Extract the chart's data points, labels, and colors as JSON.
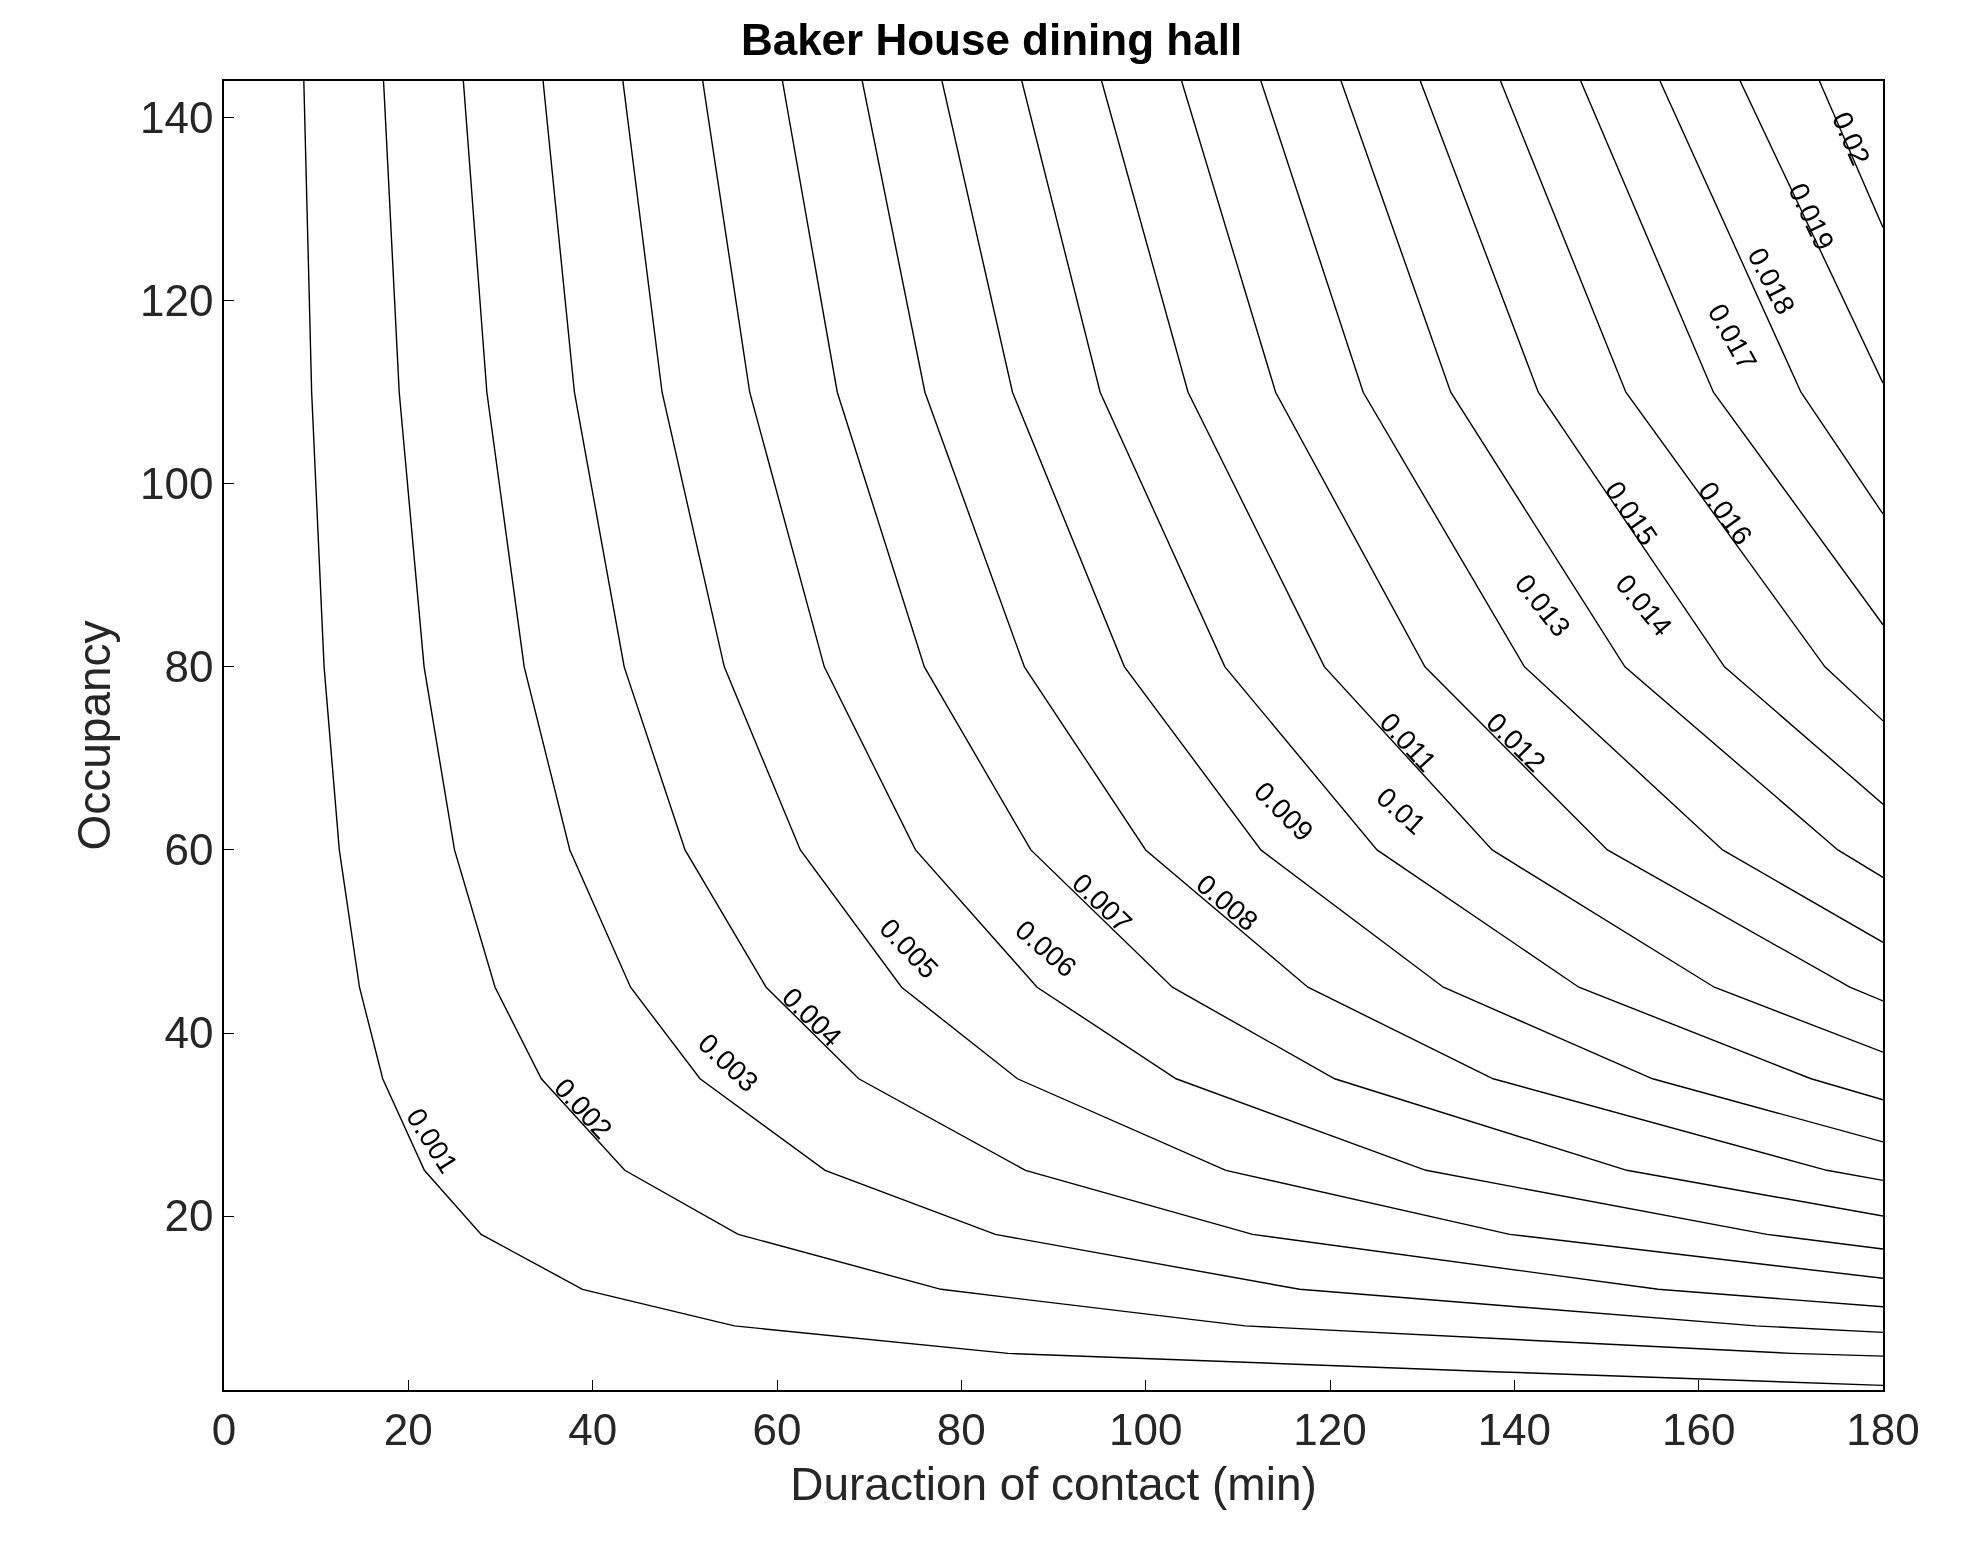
{
  "chart_data": {
    "type": "line",
    "title": "Baker House dining hall",
    "xlabel": "Duraction of contact (min)",
    "ylabel": "Occupancy",
    "series": [
      {
        "name": "0.001",
        "color": "#000000",
        "x": [
          8.66,
          9.51,
          10.86,
          12.51,
          14.7,
          17.22,
          21.74,
          27.9,
          38.89,
          55.38,
          85.07,
          137.8,
          180
        ],
        "values": [
          144,
          110,
          80,
          60,
          45,
          35,
          25,
          18,
          12,
          8,
          5,
          3,
          1.5
        ]
      },
      {
        "name": "0.002",
        "color": "#000000",
        "x": [
          17.31,
          19.01,
          21.71,
          25.01,
          29.41,
          34.43,
          43.48,
          55.79,
          77.79,
          110.8,
          170.1,
          180
        ],
        "values": [
          144,
          110,
          80,
          60,
          45,
          35,
          25,
          18,
          12,
          8,
          5,
          4.7
        ]
      },
      {
        "name": "0.003",
        "color": "#000000",
        "x": [
          25.97,
          28.52,
          32.57,
          37.52,
          44.11,
          51.65,
          65.22,
          83.69,
          116.7,
          166.2,
          180
        ],
        "values": [
          144,
          110,
          80,
          60,
          45,
          35,
          25,
          18,
          12,
          8,
          7.3
        ]
      },
      {
        "name": "0.004",
        "color": "#000000",
        "x": [
          34.62,
          38.02,
          43.42,
          50.02,
          58.82,
          68.87,
          86.96,
          111.6,
          155.6,
          180
        ],
        "values": [
          144,
          110,
          80,
          60,
          45,
          35,
          25,
          18,
          12,
          10.1
        ]
      },
      {
        "name": "0.005",
        "color": "#000000",
        "x": [
          43.28,
          47.53,
          54.28,
          62.53,
          73.52,
          86.09,
          108.7,
          139.5,
          180
        ],
        "values": [
          144,
          110,
          80,
          60,
          45,
          35,
          25,
          18,
          13.2
        ]
      },
      {
        "name": "0.006",
        "color": "#000000",
        "x": [
          51.94,
          57.04,
          65.13,
          75.03,
          88.22,
          103.3,
          130.4,
          167.4,
          180
        ],
        "values": [
          144,
          110,
          80,
          60,
          45,
          35,
          25,
          18,
          16.4
        ]
      },
      {
        "name": "0.007",
        "color": "#000000",
        "x": [
          60.59,
          66.54,
          75.99,
          87.54,
          102.9,
          120.5,
          152.2,
          180
        ],
        "values": [
          144,
          110,
          80,
          60,
          45,
          35,
          25,
          20
        ]
      },
      {
        "name": "0.008",
        "color": "#000000",
        "x": [
          69.25,
          76.05,
          86.84,
          100.0,
          117.6,
          137.7,
          173.9,
          180
        ],
        "values": [
          144,
          110,
          80,
          60,
          45,
          35,
          25,
          23.9
        ]
      },
      {
        "name": "0.009",
        "color": "#000000",
        "x": [
          77.9,
          85.55,
          97.7,
          112.5,
          132.3,
          155.0,
          180
        ],
        "values": [
          144,
          110,
          80,
          60,
          45,
          35,
          28.1
        ]
      },
      {
        "name": "0.01",
        "color": "#000000",
        "x": [
          86.56,
          95.06,
          108.6,
          125.1,
          147.0,
          172.2,
          180
        ],
        "values": [
          144,
          110,
          80,
          60,
          45,
          35,
          32.7
        ]
      },
      {
        "name": "0.011",
        "color": "#000000",
        "x": [
          95.22,
          104.6,
          119.4,
          137.6,
          161.7,
          180
        ],
        "values": [
          144,
          110,
          80,
          60,
          45,
          37.9
        ]
      },
      {
        "name": "0.012",
        "color": "#000000",
        "x": [
          103.9,
          114.1,
          130.3,
          150.1,
          176.4,
          180
        ],
        "values": [
          144,
          110,
          80,
          60,
          45,
          43.5
        ]
      },
      {
        "name": "0.013",
        "color": "#000000",
        "x": [
          112.5,
          123.6,
          141.1,
          162.6,
          180
        ],
        "values": [
          144,
          110,
          80,
          60,
          49.9
        ]
      },
      {
        "name": "0.014",
        "color": "#000000",
        "x": [
          121.2,
          133.1,
          152.0,
          175.1,
          180
        ],
        "values": [
          144,
          110,
          80,
          60,
          57
        ]
      },
      {
        "name": "0.015",
        "color": "#000000",
        "x": [
          129.8,
          142.6,
          162.8,
          180
        ],
        "values": [
          144,
          110,
          80,
          65
        ]
      },
      {
        "name": "0.016",
        "color": "#000000",
        "x": [
          138.5,
          152.1,
          173.7,
          180
        ],
        "values": [
          144,
          110,
          80,
          74.1
        ]
      },
      {
        "name": "0.017",
        "color": "#000000",
        "x": [
          147.2,
          161.6,
          180
        ],
        "values": [
          144,
          110,
          84.6
        ]
      },
      {
        "name": "0.018",
        "color": "#000000",
        "x": [
          155.8,
          171.1,
          180
        ],
        "values": [
          144,
          110,
          96.7
        ]
      },
      {
        "name": "0.019",
        "color": "#000000",
        "x": [
          164.5,
          180
        ],
        "values": [
          144,
          111
        ]
      },
      {
        "name": "0.02",
        "color": "#000000",
        "x": [
          173.1,
          180
        ],
        "values": [
          144,
          128
        ]
      }
    ],
    "xlim": [
      0,
      180
    ],
    "xticks": [
      0,
      20,
      40,
      60,
      80,
      100,
      120,
      140,
      160,
      180
    ],
    "ylim": [
      1,
      144
    ],
    "yticks": [
      20,
      40,
      60,
      80,
      100,
      120,
      140
    ]
  }
}
